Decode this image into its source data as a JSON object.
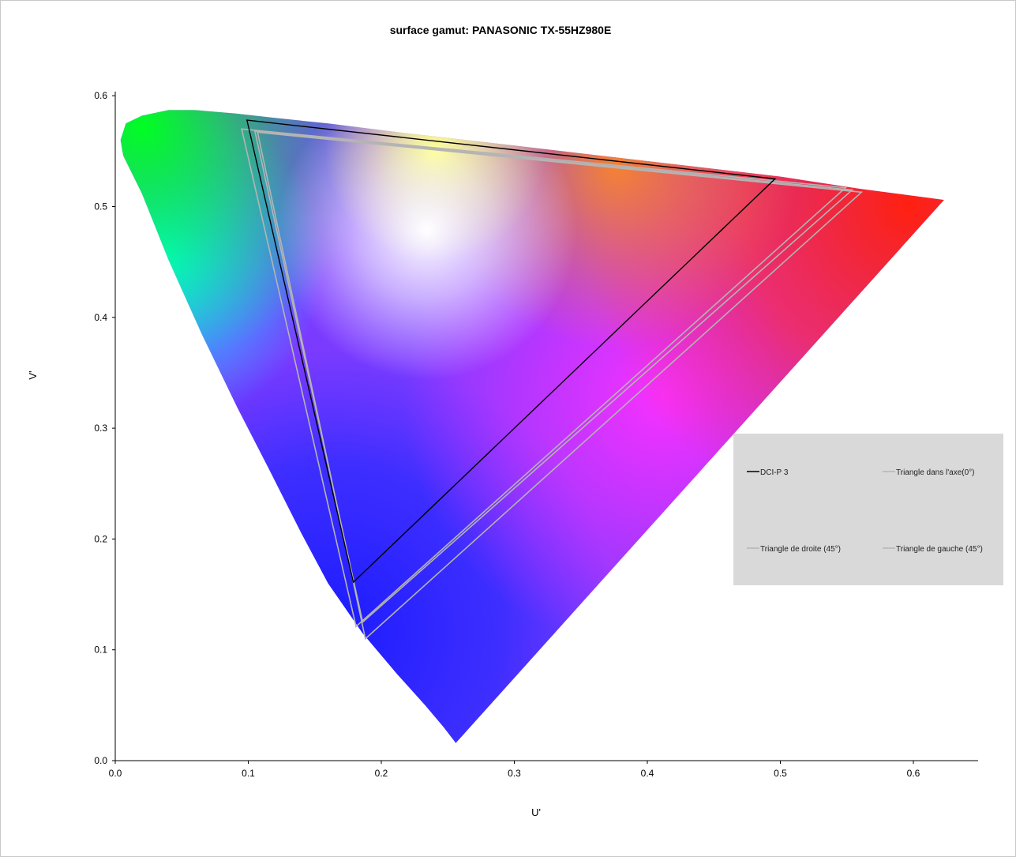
{
  "chart_data": {
    "type": "line",
    "title": "surface gamut: PANASONIC  TX-55HZ980E",
    "xlabel": "U'",
    "ylabel": "V'",
    "xlim": [
      0.0,
      0.65
    ],
    "ylim": [
      0.0,
      0.6
    ],
    "xticks": [
      "0.0",
      "0.1",
      "0.2",
      "0.3",
      "0.4",
      "0.5",
      "0.6"
    ],
    "yticks": [
      "0.0",
      "0.1",
      "0.2",
      "0.3",
      "0.4",
      "0.5",
      "0.6"
    ],
    "grid": false,
    "legend_position": "right",
    "background": "CIE 1976 u'v' spectral locus",
    "series": [
      {
        "name": "DCI-P 3",
        "color": "#000000",
        "points": [
          [
            0.099,
            0.578
          ],
          [
            0.496,
            0.525
          ],
          [
            0.179,
            0.161
          ]
        ]
      },
      {
        "name": "Triangle dans l'axe(0°)",
        "color": "#b4b4b4",
        "points": [
          [
            0.105,
            0.568
          ],
          [
            0.554,
            0.515
          ],
          [
            0.186,
            0.125
          ]
        ]
      },
      {
        "name": "Triangle de droite (45°)",
        "color": "#b4b4b4",
        "points": [
          [
            0.095,
            0.57
          ],
          [
            0.549,
            0.517
          ],
          [
            0.181,
            0.121
          ]
        ]
      },
      {
        "name": "Triangle de gauche (45°)",
        "color": "#b4b4b4",
        "points": [
          [
            0.107,
            0.567
          ],
          [
            0.561,
            0.513
          ],
          [
            0.188,
            0.11
          ]
        ]
      }
    ]
  }
}
